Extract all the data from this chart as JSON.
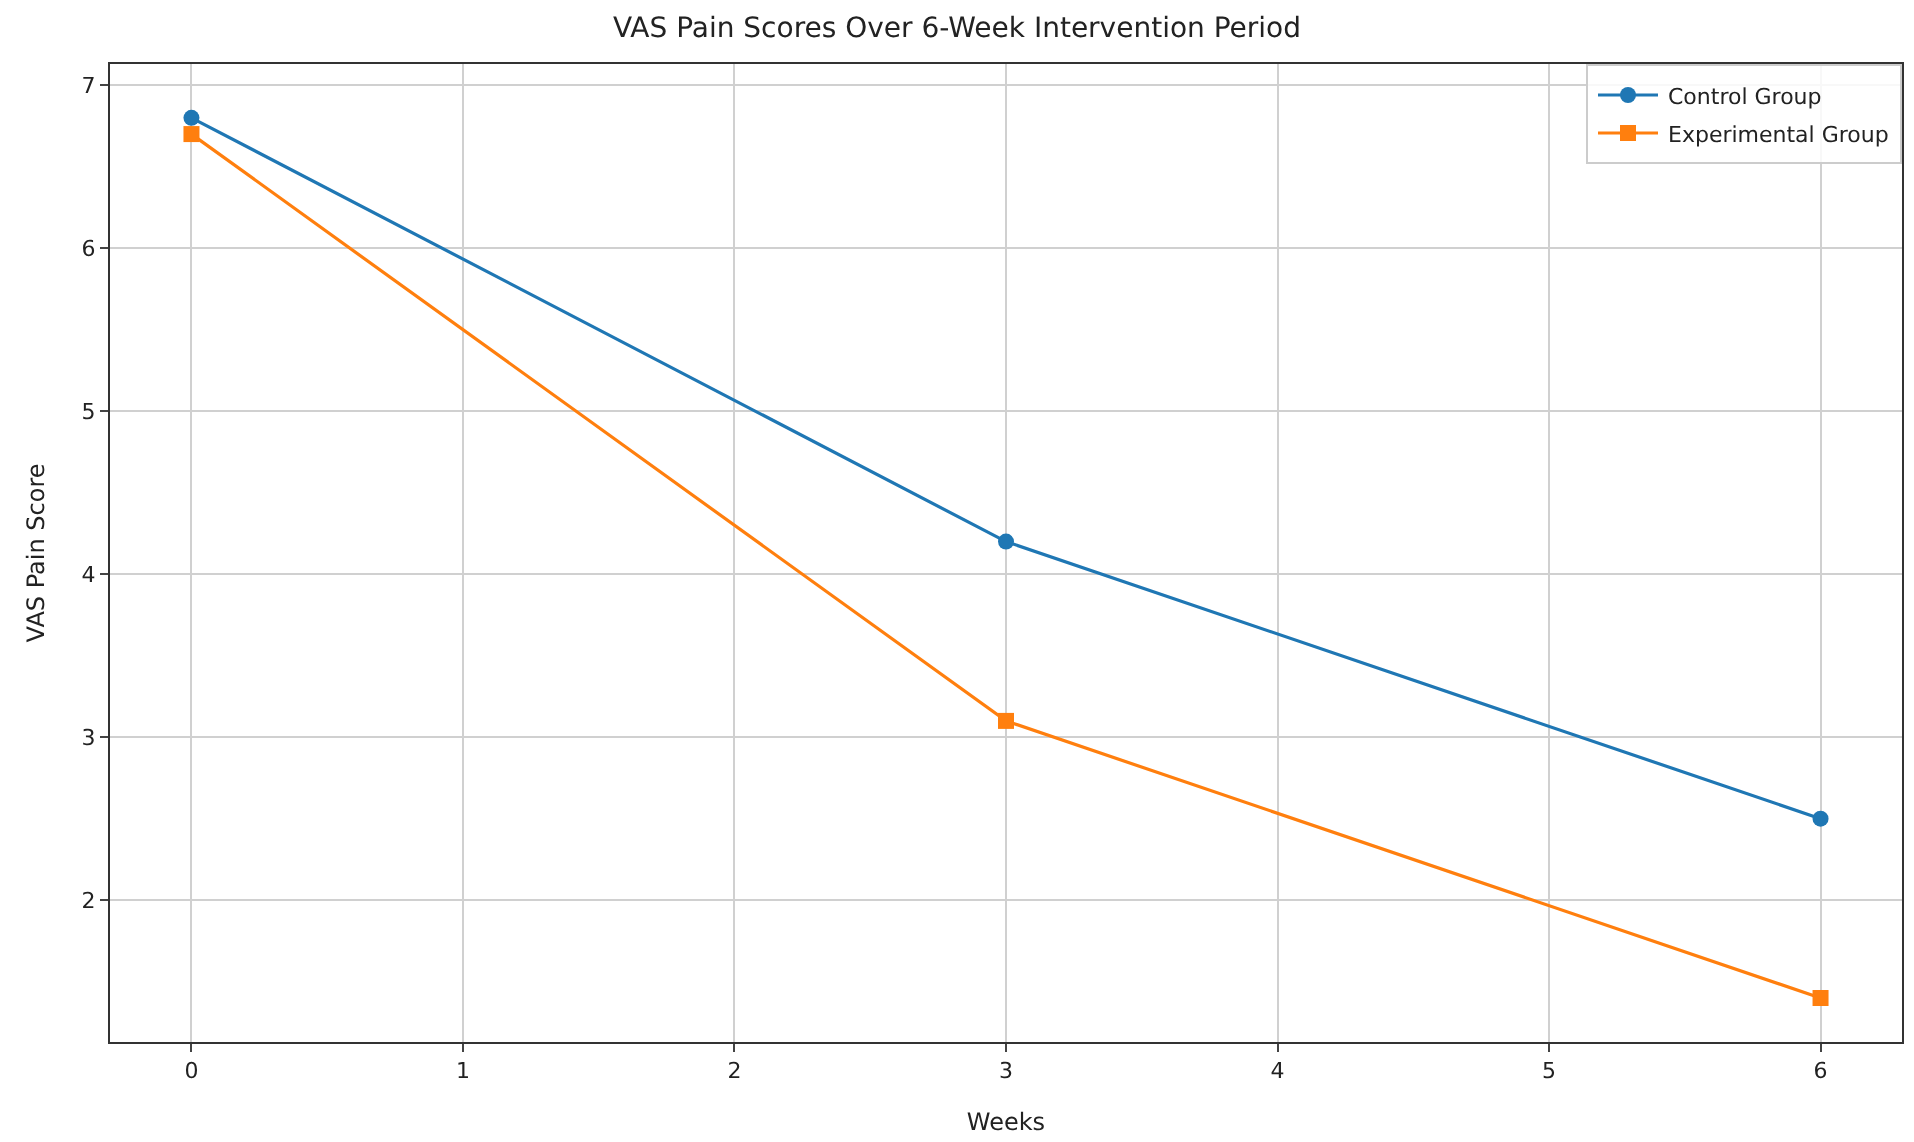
{
  "chart_data": {
    "type": "line",
    "title": "VAS Pain Scores Over 6-Week Intervention Period",
    "xlabel": "Weeks",
    "ylabel": "VAS Pain Score",
    "x": [
      0,
      3,
      6
    ],
    "series": [
      {
        "name": "Control Group",
        "color": "#1f77b4",
        "values": [
          6.8,
          4.2,
          2.5
        ],
        "marker": "circle"
      },
      {
        "name": "Experimental Group",
        "color": "#ff7f0e",
        "values": [
          6.7,
          3.1,
          1.4
        ],
        "marker": "square"
      }
    ],
    "xlim": [
      -0.3,
      6.3
    ],
    "xticks": [
      0,
      1,
      2,
      3,
      4,
      5,
      6
    ],
    "ylim": [
      1.13,
      7.13
    ],
    "yticks": [
      2,
      3,
      4,
      5,
      6,
      7
    ],
    "grid": true,
    "legend": "top right",
    "line_style": "solid"
  }
}
